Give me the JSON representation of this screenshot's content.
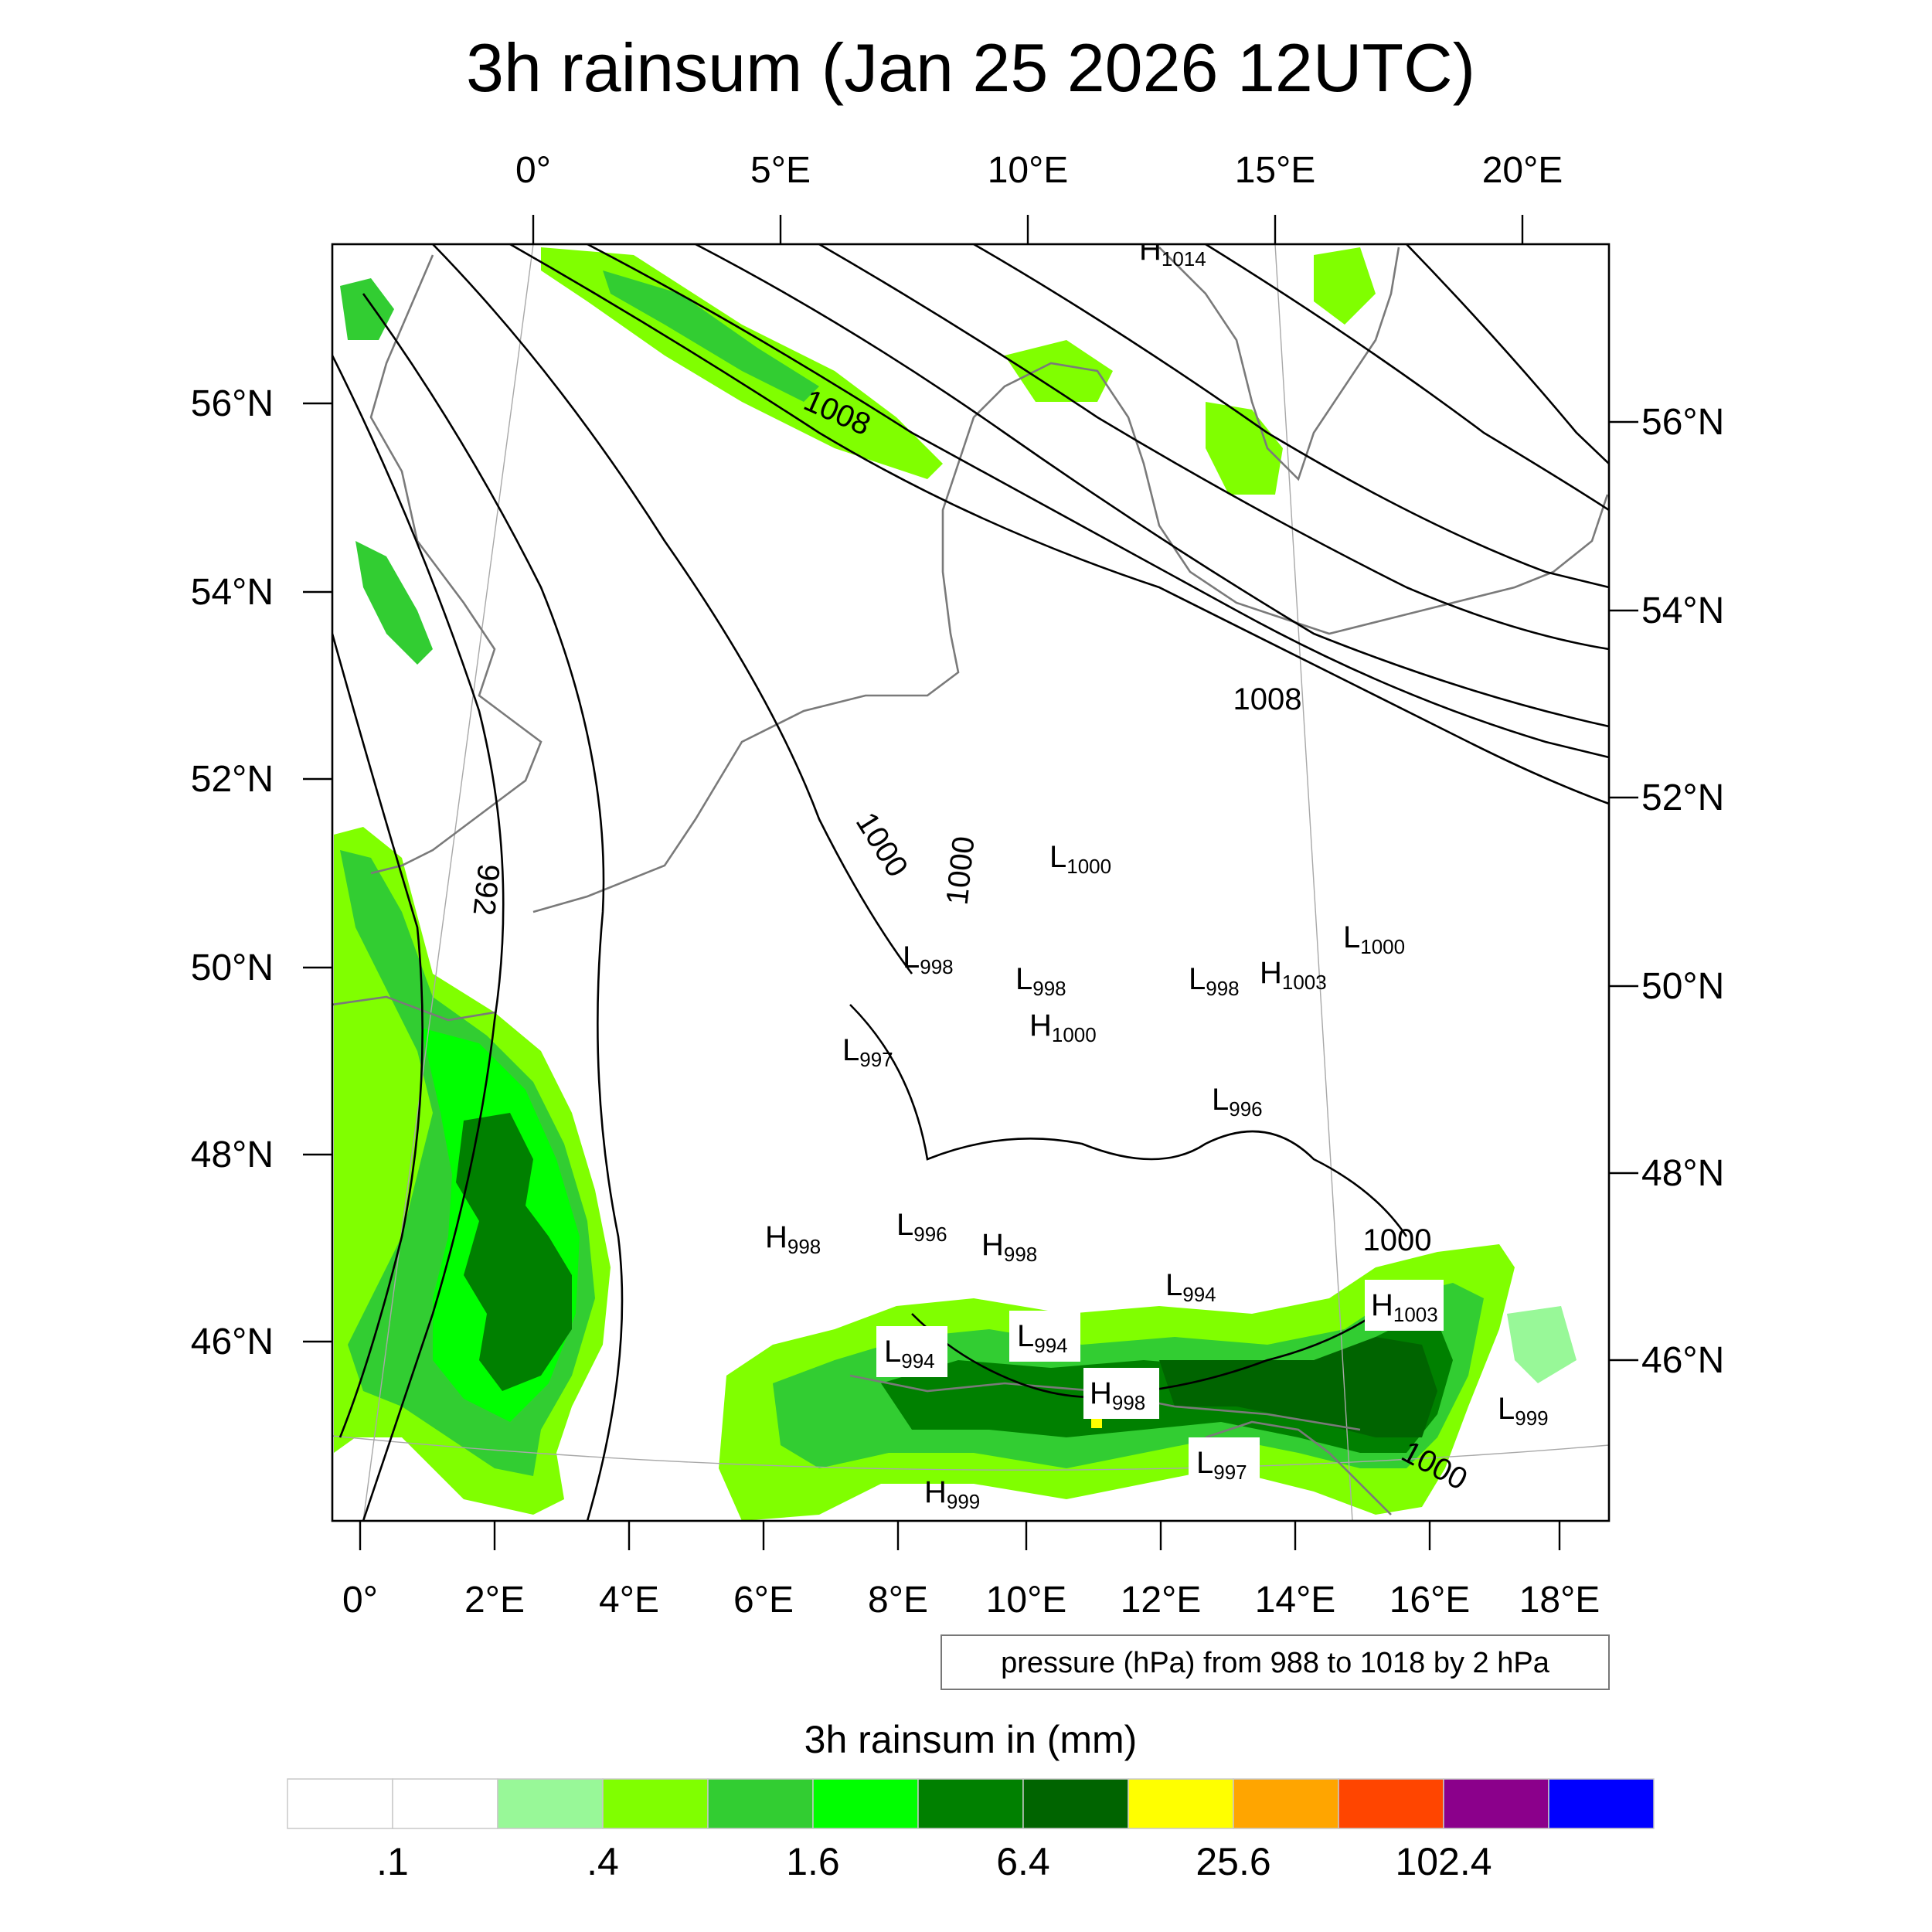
{
  "title": "3h rainsum (Jan 25 2026 12UTC)",
  "map": {
    "top_lon_labels": [
      "0°",
      "5°E",
      "10°E",
      "15°E",
      "20°E"
    ],
    "bottom_lon_labels": [
      "0°",
      "2°E",
      "4°E",
      "6°E",
      "8°E",
      "10°E",
      "12°E",
      "14°E",
      "16°E",
      "18°E"
    ],
    "left_lat_labels": [
      "56°N",
      "54°N",
      "52°N",
      "50°N",
      "48°N",
      "46°N"
    ],
    "right_lat_labels": [
      "56°N",
      "54°N",
      "52°N",
      "50°N",
      "48°N",
      "46°N"
    ]
  },
  "isobar_labels": [
    "1008",
    "1008",
    "1000",
    "1000",
    "992",
    "1000",
    "1000"
  ],
  "pressure_centers": [
    {
      "letter": "H",
      "value": "1014"
    },
    {
      "letter": "L",
      "value": "1000"
    },
    {
      "letter": "L",
      "value": "1000"
    },
    {
      "letter": "L",
      "value": "998"
    },
    {
      "letter": "L",
      "value": "998"
    },
    {
      "letter": "L",
      "value": "998"
    },
    {
      "letter": "H",
      "value": "1003"
    },
    {
      "letter": "H",
      "value": "1000"
    },
    {
      "letter": "L",
      "value": "997"
    },
    {
      "letter": "L",
      "value": "996"
    },
    {
      "letter": "H",
      "value": "998"
    },
    {
      "letter": "L",
      "value": "996"
    },
    {
      "letter": "H",
      "value": "998"
    },
    {
      "letter": "L",
      "value": "994"
    },
    {
      "letter": "H",
      "value": "1003"
    },
    {
      "letter": "L",
      "value": "994"
    },
    {
      "letter": "L",
      "value": "994"
    },
    {
      "letter": "H",
      "value": "998"
    },
    {
      "letter": "L",
      "value": "999"
    },
    {
      "letter": "L",
      "value": "997"
    },
    {
      "letter": "H",
      "value": "999"
    }
  ],
  "contour_note": "pressure (hPa) from 988 to 1018 by 2 hPa",
  "colorbar": {
    "title": "3h rainsum in (mm)",
    "colors": [
      "#ffffff",
      "#ffffff",
      "#98f898",
      "#80ff00",
      "#32cd32",
      "#00ff00",
      "#008000",
      "#006400",
      "#ffff00",
      "#ffa500",
      "#ff4500",
      "#8b008b",
      "#0000ff"
    ],
    "labels": [
      ".1",
      ".4",
      "1.6",
      "6.4",
      "25.6",
      "102.4"
    ]
  }
}
